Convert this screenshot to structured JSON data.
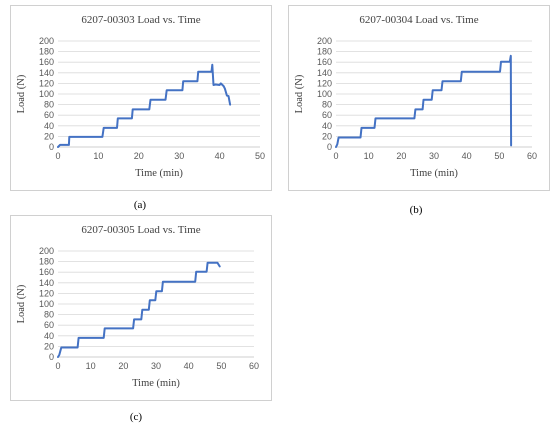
{
  "line_color": "#4472C4",
  "chart_data": [
    {
      "type": "line",
      "title": "6207-00303 Load vs. Time",
      "xlabel": "Time (min)",
      "ylabel": "Load (N)",
      "xlim": [
        0,
        50
      ],
      "ylim": [
        0,
        200
      ],
      "xticks": [
        0,
        10,
        20,
        30,
        40,
        50
      ],
      "yticks": [
        0,
        20,
        40,
        60,
        80,
        100,
        120,
        140,
        160,
        180,
        200
      ],
      "caption": "(a)",
      "series": [
        {
          "x": [
            0,
            0.5,
            2.7,
            2.8,
            11.0,
            11.3,
            14.6,
            14.8,
            18.3,
            18.5,
            22.6,
            22.9,
            26.6,
            26.9,
            30.8,
            31.0,
            34.5,
            34.7,
            38.0,
            38.2,
            38.5,
            39.0,
            40.0,
            40.3,
            41.0,
            41.3,
            41.8,
            42.2,
            42.6
          ],
          "y": [
            0,
            4,
            4,
            19,
            19,
            36,
            36,
            54,
            54,
            71,
            71,
            89,
            89,
            107,
            107,
            124,
            124,
            142,
            142,
            155,
            117,
            118,
            117,
            120,
            115,
            110,
            97,
            96,
            80
          ]
        }
      ]
    },
    {
      "type": "line",
      "title": "6207-00304 Load vs. Time",
      "xlabel": "Time (min)",
      "ylabel": "Load (N)",
      "xlim": [
        0,
        60
      ],
      "ylim": [
        0,
        200
      ],
      "xticks": [
        0,
        10,
        20,
        30,
        40,
        50,
        60
      ],
      "yticks": [
        0,
        20,
        40,
        60,
        80,
        100,
        120,
        140,
        160,
        180,
        200
      ],
      "caption": "(b)",
      "series": [
        {
          "x": [
            0,
            0.4,
            0.8,
            7.5,
            7.8,
            11.8,
            12.1,
            24.0,
            24.3,
            26.5,
            26.8,
            29.3,
            29.6,
            32.3,
            32.6,
            38.2,
            38.5,
            50.2,
            50.5,
            53.2,
            53.5,
            53.6
          ],
          "y": [
            0,
            5,
            18,
            18,
            36,
            36,
            54,
            54,
            71,
            71,
            89,
            89,
            107,
            107,
            124,
            124,
            142,
            142,
            161,
            161,
            172,
            3
          ]
        }
      ]
    },
    {
      "type": "line",
      "title": "6207-00305 Load vs. Time",
      "xlabel": "Time (min)",
      "ylabel": "Load (N)",
      "xlim": [
        0,
        60
      ],
      "ylim": [
        0,
        200
      ],
      "xticks": [
        0,
        10,
        20,
        30,
        40,
        50,
        60
      ],
      "yticks": [
        0,
        20,
        40,
        60,
        80,
        100,
        120,
        140,
        160,
        180,
        200
      ],
      "caption": "(c)",
      "series": [
        {
          "x": [
            0,
            0.4,
            1.0,
            6.0,
            6.3,
            14.0,
            14.3,
            23.0,
            23.3,
            25.5,
            25.8,
            27.8,
            28.1,
            29.8,
            30.1,
            31.8,
            32.1,
            34.0,
            34.3,
            42.0,
            42.3,
            45.5,
            45.8,
            48.5,
            48.8,
            49.5
          ],
          "y": [
            0,
            4,
            18,
            18,
            36,
            36,
            54,
            54,
            71,
            71,
            89,
            89,
            107,
            107,
            124,
            124,
            142,
            142,
            142,
            142,
            161,
            161,
            178,
            178,
            178,
            171
          ]
        }
      ]
    }
  ]
}
